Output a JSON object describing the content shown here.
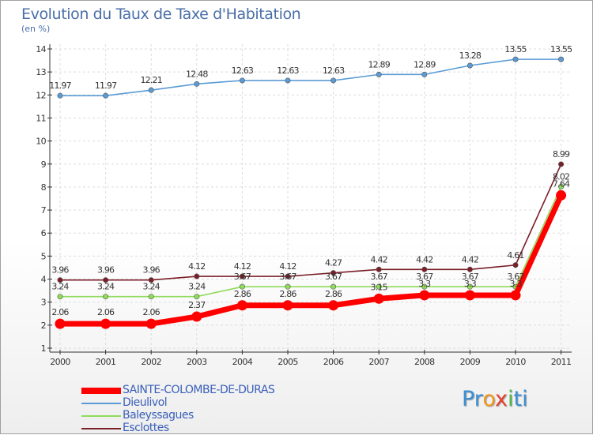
{
  "title": "Evolution du Taux de Taxe d'Habitation",
  "subtitle": "(en %)",
  "logo": {
    "parts": [
      "Pr",
      "o",
      "x",
      "i",
      "ti"
    ],
    "colors": [
      "#3a8fd6",
      "#f29a1d",
      "#e8412f",
      "#4fb848",
      "#3a8fd6"
    ]
  },
  "chart_data": {
    "type": "line",
    "x": [
      "2000",
      "2001",
      "2002",
      "2003",
      "2004",
      "2005",
      "2006",
      "2007",
      "2008",
      "2009",
      "2010",
      "2011"
    ],
    "ylim": [
      1,
      14
    ],
    "yticks": [
      "1",
      "2",
      "3",
      "4",
      "5",
      "6",
      "7",
      "8",
      "9",
      "10",
      "11",
      "12",
      "13",
      "14"
    ],
    "legend_position": "bottom-left",
    "series": [
      {
        "name": "SAINTE-COLOMBE-DE-DURAS",
        "color": "#ff0000",
        "values": [
          2.06,
          2.06,
          2.06,
          2.37,
          2.86,
          2.86,
          2.86,
          3.15,
          3.3,
          3.3,
          3.3,
          7.64
        ],
        "labels": [
          "2.06",
          "2.06",
          "2.06",
          "2.37",
          "2.86",
          "2.86",
          "2.86",
          "3.15",
          "3.3",
          "3.3",
          "3.3",
          "7.64"
        ]
      },
      {
        "name": "Dieulivol",
        "color": "#5b9bd5",
        "values": [
          11.97,
          11.97,
          12.21,
          12.48,
          12.63,
          12.63,
          12.63,
          12.89,
          12.89,
          13.28,
          13.55,
          13.55
        ],
        "labels": [
          "11.97",
          "11.97",
          "12.21",
          "12.48",
          "12.63",
          "12.63",
          "12.63",
          "12.89",
          "12.89",
          "13.28",
          "13.55",
          "13.55"
        ]
      },
      {
        "name": "Baleyssagues",
        "color": "#8fdc5a",
        "values": [
          3.24,
          3.24,
          3.24,
          3.24,
          3.67,
          3.67,
          3.67,
          3.67,
          3.67,
          3.67,
          3.67,
          8.02
        ],
        "labels": [
          "3.24",
          "3.24",
          "3.24",
          "3.24",
          "3.67",
          "3.67",
          "3.67",
          "3.67",
          "3.67",
          "3.67",
          "3.67",
          "8.02"
        ]
      },
      {
        "name": "Esclottes",
        "color": "#7a1f28",
        "values": [
          3.96,
          3.96,
          3.96,
          4.12,
          4.12,
          4.12,
          4.27,
          4.42,
          4.42,
          4.42,
          4.61,
          8.99
        ],
        "labels": [
          "3.96",
          "3.96",
          "3.96",
          "4.12",
          "4.12",
          "4.12",
          "4.27",
          "4.42",
          "4.42",
          "4.42",
          "4.61",
          "8.99"
        ]
      }
    ]
  }
}
